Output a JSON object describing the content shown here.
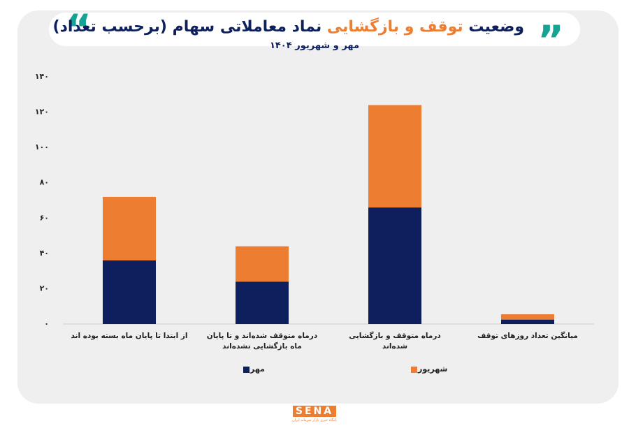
{
  "chart_data": {
    "type": "stacked_bar",
    "title": [
      "وضعیت",
      "توقف و بازگشایی",
      "نماد معاملاتی سهام (برحسب تعداد)"
    ],
    "subtitle": "مهر و شهریور ۱۴۰۴",
    "categories": [
      "از ابتدا تا پایان ماه بسته بوده اند",
      "درماه متوقف شده‌اند و تا پایان ماه بازگشایی نشده‌اند",
      "درماه متوقف و بازگشایی شده‌اند",
      "میانگین تعداد روزهای توقف"
    ],
    "series": [
      {
        "name": "مهر",
        "color": "#0d1f5c",
        "values": [
          36,
          24,
          66,
          2.5
        ]
      },
      {
        "name": "شهریور",
        "color": "#ed7d31",
        "values": [
          36,
          20,
          58,
          3
        ]
      }
    ],
    "ylim": [
      0,
      140
    ],
    "yticks": [
      {
        "value": 0,
        "label": "۰"
      },
      {
        "value": 20,
        "label": "۲۰"
      },
      {
        "value": 40,
        "label": "۴۰"
      },
      {
        "value": 60,
        "label": "۶۰"
      },
      {
        "value": 80,
        "label": "۸۰"
      },
      {
        "value": 100,
        "label": "۱۰۰"
      },
      {
        "value": 120,
        "label": "۱۲۰"
      },
      {
        "value": 140,
        "label": "۱۴۰"
      }
    ],
    "grid": false,
    "legend": "bottom",
    "logo": "SENA",
    "logo_tagline": "پایگاه خبری بازار سرمایه ایران"
  }
}
